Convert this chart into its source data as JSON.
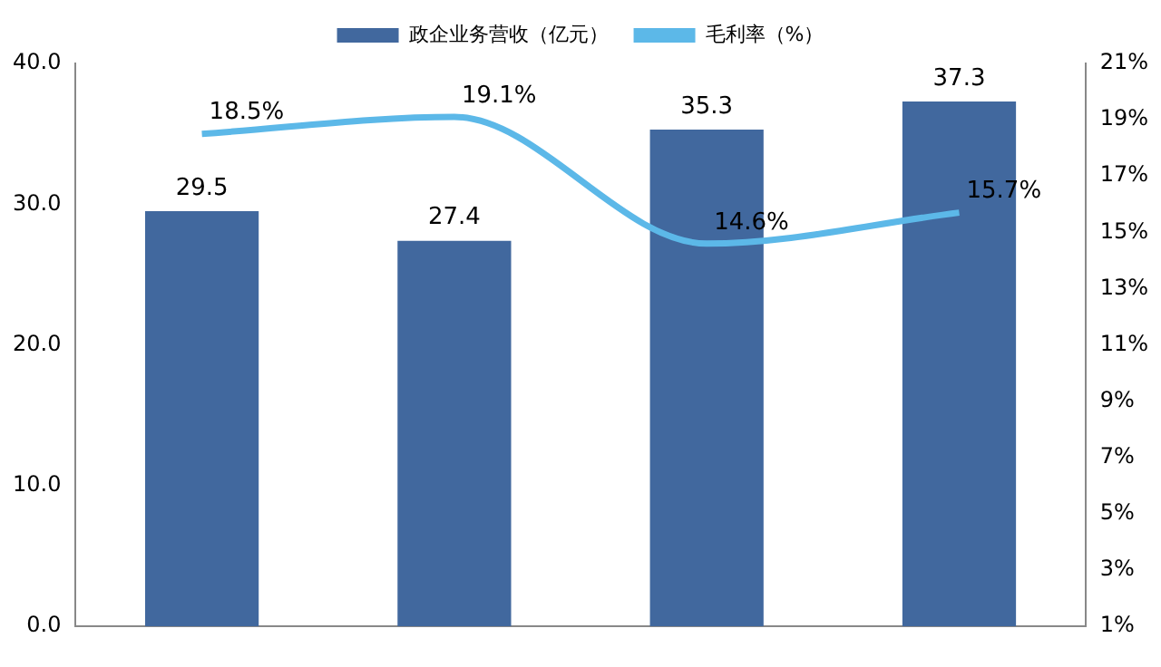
{
  "chart_data": {
    "type": "bar",
    "categories": [
      null,
      null,
      null,
      null
    ],
    "series": [
      {
        "name": "政企业务营收（亿元）",
        "color": "#41689e",
        "values": [
          29.5,
          27.4,
          35.3,
          37.3
        ]
      },
      {
        "name": "毛利率（%）",
        "type": "line",
        "axis": "y2",
        "color": "#5cb8e8",
        "values": [
          18.5,
          19.1,
          14.6,
          15.7
        ],
        "value_labels": [
          "18.5%",
          "19.1%",
          "14.6%",
          "15.7%"
        ]
      }
    ],
    "ylim": [
      0,
      40
    ],
    "yticks": [
      {
        "value": 0,
        "label": "0.0"
      },
      {
        "value": 10,
        "label": "10.0"
      },
      {
        "value": 20,
        "label": "20.0"
      },
      {
        "value": 30,
        "label": "30.0"
      },
      {
        "value": 40,
        "label": "40.0"
      }
    ],
    "y2lim": [
      1,
      21
    ],
    "y2ticks": [
      {
        "value": 1,
        "label": "1%"
      },
      {
        "value": 3,
        "label": "3%"
      },
      {
        "value": 5,
        "label": "5%"
      },
      {
        "value": 7,
        "label": "7%"
      },
      {
        "value": 9,
        "label": "9%"
      },
      {
        "value": 11,
        "label": "11%"
      },
      {
        "value": 13,
        "label": "13%"
      },
      {
        "value": 15,
        "label": "15%"
      },
      {
        "value": 17,
        "label": "17%"
      },
      {
        "value": 19,
        "label": "19%"
      },
      {
        "value": 21,
        "label": "21%"
      }
    ],
    "grid": false,
    "legend": "top",
    "data_labels": true,
    "marker": "none",
    "line_style": "solid"
  }
}
